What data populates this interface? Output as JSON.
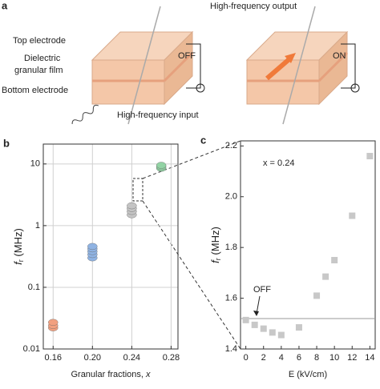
{
  "diagram": {
    "panel_label": "a",
    "labels": {
      "top_electrode": "Top electrode",
      "dielectric_1": "Dielectric",
      "dielectric_2": "granular film",
      "bottom_electrode": "Bottom electrode",
      "off": "OFF",
      "on": "ON",
      "input": "High-frequency input",
      "output": "High-frequency output"
    }
  },
  "chart_data": [
    {
      "type": "scatter",
      "panel_label": "b",
      "log_y": true,
      "xlabel": [
        "Granular fractions, ",
        "x"
      ],
      "ylabel": [
        "f",
        "r",
        " (MHz)"
      ],
      "xlim": [
        0.15,
        0.287
      ],
      "xticks": [
        0.16,
        {
          "value": 0.2,
          "label": "0.20"
        },
        0.24,
        0.28
      ],
      "ylim": [
        0.01,
        21
      ],
      "yticks": [
        0.01,
        0.1,
        1,
        10
      ],
      "grid": true,
      "series": [
        {
          "color": "#f2a07f",
          "x": [
            0.16,
            0.16,
            0.16
          ],
          "values": [
            0.022,
            0.024,
            0.027
          ]
        },
        {
          "color": "#8fb3e3",
          "x": [
            0.2,
            0.2,
            0.2,
            0.2,
            0.2
          ],
          "values": [
            0.3,
            0.34,
            0.38,
            0.42,
            0.46
          ]
        },
        {
          "color": "#c4c4c4",
          "x": [
            0.24,
            0.24,
            0.24,
            0.24
          ],
          "values": [
            1.5,
            1.7,
            1.9,
            2.1
          ]
        },
        {
          "color": "#92d3a4",
          "x": [
            0.27,
            0.27,
            0.27
          ],
          "values": [
            8.5,
            9,
            9.5
          ]
        }
      ]
    },
    {
      "type": "scatter",
      "panel_label": "c",
      "log_y": false,
      "xlabel": [
        "E (kV/cm)"
      ],
      "ylabel": [
        "f",
        "r",
        " (MHz)"
      ],
      "annotation": "x = 0.24",
      "xlim": [
        -0.6,
        14.6
      ],
      "xticks": [
        0,
        2,
        4,
        6,
        8,
        10,
        12,
        14
      ],
      "ylim": [
        1.4,
        2.22
      ],
      "yticks": [
        1.4,
        1.6,
        1.8,
        {
          "value": 2.0,
          "label": "2.0"
        },
        2.2
      ],
      "grid": false,
      "hline": {
        "value": 1.52,
        "label": "OFF"
      },
      "series": [
        {
          "color": "#c8c8c8",
          "x": [
            0,
            1,
            2,
            3,
            4,
            6,
            8,
            9,
            10,
            12,
            14
          ],
          "values": [
            1.514,
            1.495,
            1.48,
            1.465,
            1.455,
            1.485,
            1.61,
            1.685,
            1.75,
            1.925,
            2.16
          ]
        }
      ]
    }
  ]
}
